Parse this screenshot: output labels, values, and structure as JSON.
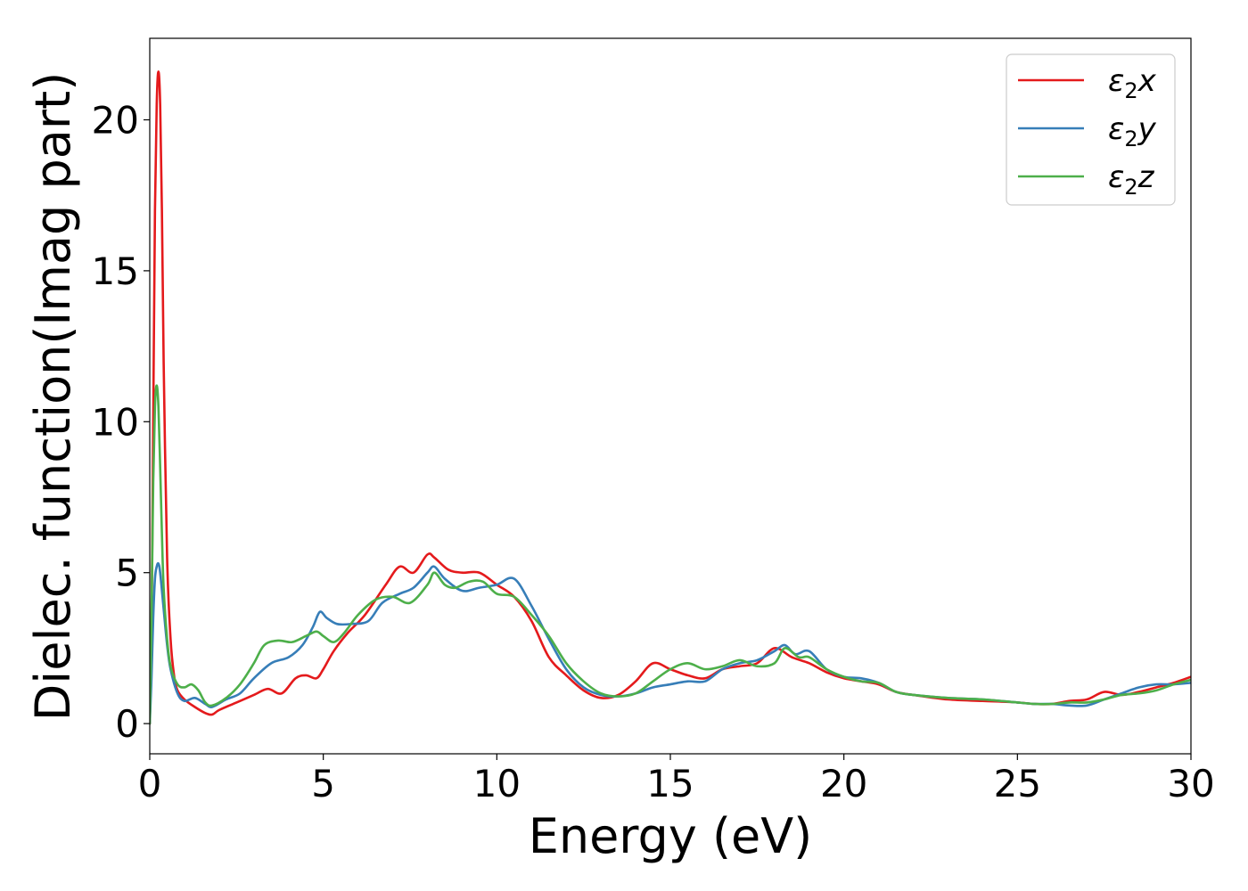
{
  "chart_data": {
    "type": "line",
    "title": "",
    "xlabel": "Energy (eV)",
    "ylabel": "Dielec. function(Imag part)",
    "xlim": [
      0,
      30
    ],
    "ylim": [
      -1.0,
      22.7
    ],
    "xticks": [
      0,
      5,
      10,
      15,
      20,
      25,
      30
    ],
    "yticks": [
      0,
      5,
      10,
      15,
      20
    ],
    "grid": false,
    "legend_position": "top-right",
    "series": [
      {
        "name": "ε₂x",
        "legend_main": "ε",
        "legend_sub": "2",
        "legend_suffix": "x",
        "color": "#e41a1c",
        "x": [
          0.0,
          0.05,
          0.1,
          0.15,
          0.2,
          0.25,
          0.3,
          0.35,
          0.4,
          0.5,
          0.6,
          0.7,
          0.8,
          1.0,
          1.3,
          1.6,
          1.8,
          2.0,
          2.5,
          3.0,
          3.4,
          3.8,
          4.2,
          4.5,
          4.8,
          5.0,
          5.3,
          5.7,
          6.2,
          6.8,
          7.2,
          7.6,
          8.0,
          8.2,
          8.6,
          9.0,
          9.5,
          10.0,
          10.5,
          11.0,
          11.5,
          12.0,
          12.5,
          13.0,
          13.5,
          14.0,
          14.5,
          15.0,
          15.5,
          16.0,
          16.5,
          17.0,
          17.5,
          18.0,
          18.5,
          19.0,
          19.5,
          20.0,
          20.5,
          21.0,
          21.5,
          22.0,
          23.0,
          24.0,
          25.0,
          25.5,
          26.0,
          26.5,
          27.0,
          27.5,
          28.0,
          28.5,
          29.0,
          29.5,
          30.0
        ],
        "values": [
          0.0,
          3.0,
          10.0,
          17.0,
          20.5,
          21.6,
          20.5,
          17.0,
          12.0,
          5.5,
          2.8,
          1.6,
          1.1,
          0.8,
          0.55,
          0.35,
          0.3,
          0.45,
          0.7,
          0.95,
          1.15,
          1.0,
          1.5,
          1.6,
          1.5,
          1.8,
          2.4,
          3.0,
          3.6,
          4.6,
          5.2,
          5.0,
          5.6,
          5.5,
          5.1,
          5.0,
          5.0,
          4.6,
          4.2,
          3.4,
          2.2,
          1.6,
          1.1,
          0.85,
          0.95,
          1.4,
          2.0,
          1.8,
          1.6,
          1.5,
          1.8,
          1.9,
          2.0,
          2.5,
          2.2,
          2.0,
          1.7,
          1.5,
          1.4,
          1.3,
          1.05,
          0.95,
          0.8,
          0.75,
          0.7,
          0.65,
          0.65,
          0.75,
          0.8,
          1.05,
          0.95,
          1.05,
          1.2,
          1.35,
          1.55
        ]
      },
      {
        "name": "ε₂y",
        "legend_main": "ε",
        "legend_sub": "2",
        "legend_suffix": "y",
        "color": "#377eb8",
        "x": [
          0.0,
          0.05,
          0.1,
          0.15,
          0.2,
          0.25,
          0.3,
          0.4,
          0.5,
          0.6,
          0.8,
          1.0,
          1.3,
          1.6,
          1.8,
          2.2,
          2.6,
          3.0,
          3.5,
          4.0,
          4.4,
          4.7,
          4.9,
          5.1,
          5.4,
          5.8,
          6.3,
          6.7,
          7.2,
          7.6,
          8.0,
          8.2,
          8.5,
          9.0,
          9.5,
          10.0,
          10.5,
          11.0,
          11.5,
          12.0,
          12.5,
          13.0,
          13.5,
          14.0,
          14.5,
          15.0,
          15.5,
          16.0,
          16.5,
          17.0,
          17.5,
          18.0,
          18.3,
          18.6,
          19.0,
          19.5,
          20.0,
          20.5,
          21.0,
          21.5,
          22.0,
          23.0,
          24.0,
          25.0,
          25.5,
          26.0,
          26.5,
          27.0,
          27.5,
          28.0,
          28.5,
          29.0,
          29.5,
          30.0
        ],
        "values": [
          0.0,
          1.5,
          3.5,
          4.8,
          5.2,
          5.3,
          5.0,
          3.8,
          2.6,
          1.8,
          1.0,
          0.75,
          0.85,
          0.65,
          0.55,
          0.8,
          1.0,
          1.5,
          2.0,
          2.2,
          2.6,
          3.2,
          3.7,
          3.5,
          3.3,
          3.3,
          3.4,
          4.0,
          4.3,
          4.5,
          5.0,
          5.2,
          4.8,
          4.4,
          4.5,
          4.6,
          4.8,
          3.9,
          2.8,
          1.8,
          1.2,
          0.95,
          0.9,
          1.0,
          1.2,
          1.3,
          1.4,
          1.4,
          1.8,
          2.0,
          2.1,
          2.4,
          2.6,
          2.3,
          2.4,
          1.8,
          1.55,
          1.5,
          1.35,
          1.05,
          0.95,
          0.85,
          0.8,
          0.7,
          0.65,
          0.65,
          0.6,
          0.6,
          0.8,
          1.0,
          1.2,
          1.3,
          1.3,
          1.35
        ]
      },
      {
        "name": "ε₂z",
        "legend_main": "ε",
        "legend_sub": "2",
        "legend_suffix": "z",
        "color": "#4daf4a",
        "x": [
          0.0,
          0.05,
          0.1,
          0.15,
          0.2,
          0.25,
          0.3,
          0.35,
          0.4,
          0.5,
          0.6,
          0.8,
          1.0,
          1.2,
          1.4,
          1.6,
          1.8,
          2.2,
          2.6,
          3.0,
          3.3,
          3.7,
          4.1,
          4.5,
          4.8,
          5.0,
          5.3,
          5.6,
          6.0,
          6.5,
          7.0,
          7.5,
          8.0,
          8.2,
          8.5,
          8.8,
          9.2,
          9.6,
          10.0,
          10.5,
          11.0,
          11.5,
          12.0,
          12.5,
          13.0,
          13.5,
          14.0,
          14.5,
          15.0,
          15.5,
          16.0,
          16.5,
          17.0,
          17.5,
          18.0,
          18.3,
          18.7,
          19.0,
          19.5,
          20.0,
          20.5,
          21.0,
          21.5,
          22.0,
          23.0,
          24.0,
          25.0,
          25.5,
          26.0,
          26.5,
          27.0,
          27.5,
          28.0,
          28.5,
          29.0,
          29.5,
          30.0
        ],
        "values": [
          0.0,
          3.5,
          8.0,
          10.5,
          11.2,
          10.5,
          8.5,
          6.3,
          4.5,
          2.8,
          1.9,
          1.3,
          1.2,
          1.3,
          1.1,
          0.7,
          0.6,
          0.85,
          1.3,
          2.0,
          2.6,
          2.75,
          2.7,
          2.9,
          3.05,
          2.9,
          2.7,
          3.0,
          3.6,
          4.1,
          4.2,
          4.0,
          4.6,
          5.0,
          4.6,
          4.5,
          4.7,
          4.7,
          4.3,
          4.2,
          3.6,
          2.9,
          2.0,
          1.4,
          1.0,
          0.9,
          1.0,
          1.4,
          1.8,
          2.0,
          1.8,
          1.9,
          2.1,
          1.9,
          2.0,
          2.5,
          2.2,
          2.2,
          1.8,
          1.55,
          1.4,
          1.35,
          1.05,
          0.95,
          0.85,
          0.8,
          0.7,
          0.65,
          0.65,
          0.7,
          0.7,
          0.8,
          0.95,
          1.0,
          1.1,
          1.3,
          1.45
        ]
      }
    ]
  }
}
